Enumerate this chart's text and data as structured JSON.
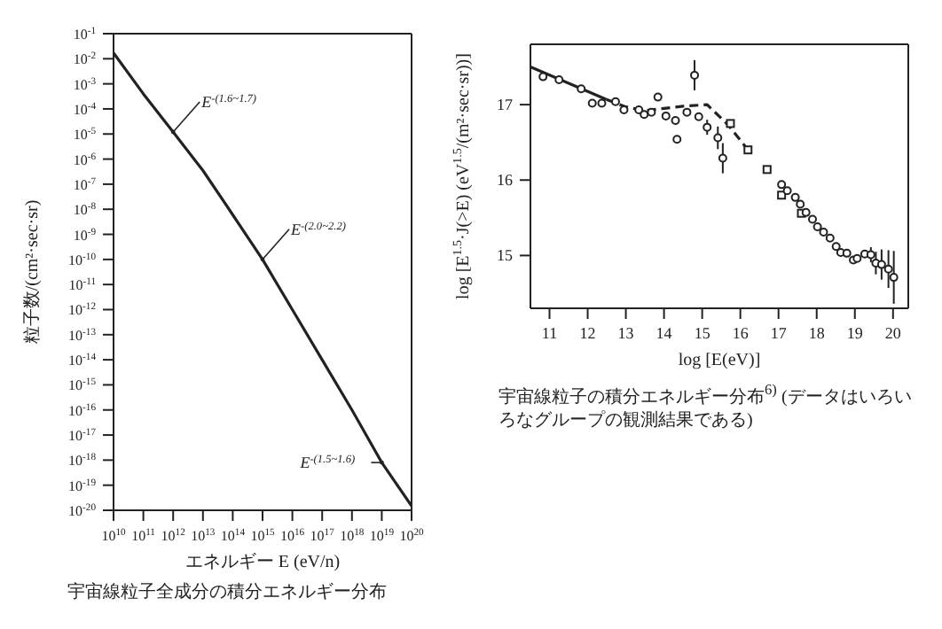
{
  "chart_data": [
    {
      "type": "line",
      "title": "宇宙線粒子全成分の積分エネルギー分布",
      "xlabel": "エネルギー E (eV/n)",
      "ylabel": "粒子数/(cm²·sec·sr)",
      "log": "xy",
      "xlim": [
        10000000000.0,
        1e+20
      ],
      "ylim": [
        1e-20,
        0.1
      ],
      "xticks": [
        {
          "value": 10000000000.0,
          "label": "10$^{10}$"
        },
        {
          "value": 100000000000.0,
          "label": "10$^{11}$"
        },
        {
          "value": 1000000000000.0,
          "label": "10$^{12}$"
        },
        {
          "value": 10000000000000.0,
          "label": "10$^{13}$"
        },
        {
          "value": 100000000000000.0,
          "label": "10$^{14}$"
        },
        {
          "value": 1000000000000000.0,
          "label": "10$^{15}$"
        },
        {
          "value": 1e+16,
          "label": "10$^{16}$"
        },
        {
          "value": 1e+17,
          "label": "10$^{17}$"
        },
        {
          "value": 1e+18,
          "label": "10$^{18}$"
        },
        {
          "value": 1e+19,
          "label": "10$^{19}$"
        },
        {
          "value": 1e+20,
          "label": "10$^{20}$"
        }
      ],
      "yticks": [
        {
          "value": 0.1,
          "label": "10$^{-1}$"
        },
        {
          "value": 0.01,
          "label": "10$^{-2}$"
        },
        {
          "value": 0.001,
          "label": "10$^{-3}$"
        },
        {
          "value": 0.0001,
          "label": "10$^{-4}$"
        },
        {
          "value": 1e-05,
          "label": "10$^{-5}$"
        },
        {
          "value": 1e-06,
          "label": "10$^{-6}$"
        },
        {
          "value": 1e-07,
          "label": "10$^{-7}$"
        },
        {
          "value": 1e-08,
          "label": "10$^{-8}$"
        },
        {
          "value": 1e-09,
          "label": "10$^{-9}$"
        },
        {
          "value": 1e-10,
          "label": "10$^{-10}$"
        },
        {
          "value": 1e-11,
          "label": "10$^{-11}$"
        },
        {
          "value": 1e-12,
          "label": "10$^{-12}$"
        },
        {
          "value": 1e-13,
          "label": "10$^{-13}$"
        },
        {
          "value": 1e-14,
          "label": "10$^{-14}$"
        },
        {
          "value": 1e-15,
          "label": "10$^{-15}$"
        },
        {
          "value": 1e-16,
          "label": "10$^{-16}$"
        },
        {
          "value": 1e-17,
          "label": "10$^{-17}$"
        },
        {
          "value": 1e-18,
          "label": "10$^{-18}$"
        },
        {
          "value": 1e-19,
          "label": "10$^{-19}$"
        },
        {
          "value": 1e-20,
          "label": "10$^{-20}$"
        }
      ],
      "x": [
        10000000000.0,
        100000000000.0,
        1000000000000.0,
        10000000000000.0,
        100000000000000.0,
        1000000000000000.0,
        1e+16,
        1e+17,
        1e+18,
        1e+19,
        1e+20
      ],
      "series": [
        {
          "color": "#222222",
          "values": [
            0.017,
            0.0004,
            1.2e-05,
            3.5e-07,
            6e-09,
            1e-10,
            1e-12,
            1e-14,
            1e-16,
            8e-19,
            1.5e-20
          ]
        }
      ],
      "annotations": [
        {
          "text": "E$^{-(1.6~1.7)}$",
          "x": 1000000000000.0,
          "y": 1.2e-05
        },
        {
          "text": "E$^{-(2.0~2.2)}$",
          "x": 1000000000000000.0,
          "y": 1e-10
        },
        {
          "text": "E$^{-(1.5~1.6)}$",
          "x": 1e+19,
          "y": 8e-19
        }
      ]
    },
    {
      "type": "scatter",
      "title": "宇宙線粒子の積分エネルギー分布$^{6)}$ (データはいろいろなグループの観測結果である)",
      "xlabel": "log [E(eV)]",
      "ylabel": "log [E$^{1.5}$·J(>E) (eV$^{1.5}$/(m²·sec·sr))]",
      "xlim": [
        10.5,
        20.4
      ],
      "ylim": [
        14.3,
        17.8
      ],
      "xticks": [
        11,
        12,
        13,
        14,
        15,
        16,
        17,
        18,
        19,
        20
      ],
      "yticks": [
        15,
        16,
        17
      ],
      "series": [
        {
          "type": "line",
          "color": "#222222",
          "line_style": "solid",
          "marker": "none",
          "x": [
            10.5,
            12.49
          ],
          "values": [
            17.5,
            17.07
          ]
        },
        {
          "type": "line",
          "color": "#222222",
          "line_style": "dashed",
          "marker": "none",
          "x": [
            12.49,
            13,
            13.5,
            14,
            14.5,
            15.13,
            15.7,
            16.2
          ],
          "values": [
            17.07,
            16.97,
            16.92,
            16.95,
            16.98,
            17.0,
            16.72,
            16.4
          ]
        },
        {
          "color": "#222222",
          "marker": "circle",
          "x": [
            10.83,
            11.25,
            11.83,
            12.12,
            12.37,
            12.73,
            12.95,
            13.34,
            13.48,
            13.67,
            13.84,
            14.05,
            14.3,
            14.34,
            14.6,
            14.91,
            14.8,
            15.13,
            15.41,
            15.54
          ],
          "values": [
            17.37,
            17.33,
            17.21,
            17.02,
            17.02,
            17.04,
            16.93,
            16.93,
            16.87,
            16.9,
            17.1,
            16.85,
            16.79,
            16.54,
            16.9,
            16.84,
            17.39,
            16.7,
            16.56,
            16.29
          ],
          "errors": [
            null,
            null,
            null,
            null,
            null,
            null,
            null,
            null,
            null,
            null,
            null,
            null,
            null,
            null,
            null,
            null,
            0.2,
            0.1,
            0.15,
            0.2
          ]
        },
        {
          "color": "#222222",
          "marker": "square",
          "x": [
            15.74,
            16.2,
            16.7,
            17.08,
            17.6
          ],
          "values": [
            16.75,
            16.4,
            16.14,
            15.8,
            15.56
          ]
        },
        {
          "color": "#222222",
          "marker": "circle",
          "x": [
            17.08,
            17.23,
            17.44,
            17.57,
            17.72,
            17.89,
            18.02,
            18.18,
            18.35,
            18.51,
            18.63,
            18.79,
            18.96,
            19.06,
            19.26,
            19.42,
            19.55,
            19.7,
            19.88,
            20.02
          ],
          "values": [
            15.94,
            15.86,
            15.77,
            15.68,
            15.57,
            15.48,
            15.38,
            15.31,
            15.23,
            15.12,
            15.04,
            15.03,
            14.94,
            14.96,
            15.02,
            15.01,
            14.9,
            14.88,
            14.82,
            14.71
          ],
          "errors": [
            null,
            null,
            null,
            null,
            null,
            null,
            null,
            null,
            null,
            null,
            null,
            null,
            null,
            null,
            0.05,
            0.1,
            0.15,
            0.2,
            0.25,
            0.35
          ]
        }
      ]
    }
  ]
}
